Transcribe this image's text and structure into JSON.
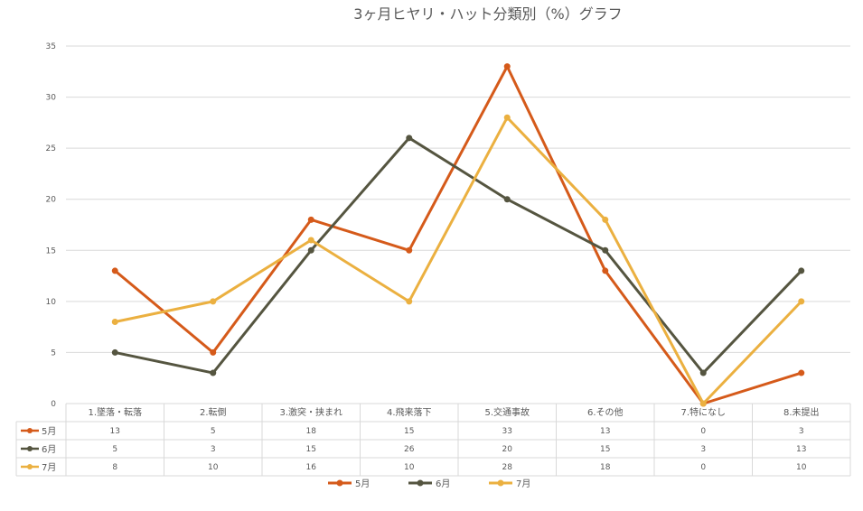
{
  "chart_data": {
    "type": "line",
    "title": "3ヶ月ヒヤリ・ハット分類別（%）グラフ",
    "categories": [
      "1.墜落・転落",
      "2.転倒",
      "3.激突・挟まれ",
      "4.飛来落下",
      "5.交通事故",
      "6.その他",
      "7.特になし",
      "8.未提出"
    ],
    "ylim": [
      0,
      35
    ],
    "yticks": [
      0,
      5,
      10,
      15,
      20,
      25,
      30,
      35
    ],
    "grid": true,
    "legend_placement": "bottom",
    "data_table": true,
    "series": [
      {
        "name": "5月",
        "color": "#D55A1A",
        "values": [
          13,
          5,
          18,
          15,
          33,
          13,
          0,
          3
        ]
      },
      {
        "name": "6月",
        "color": "#555540",
        "values": [
          5,
          3,
          15,
          26,
          20,
          15,
          3,
          13
        ]
      },
      {
        "name": "7月",
        "color": "#EBB040",
        "values": [
          8,
          10,
          16,
          10,
          28,
          18,
          0,
          10
        ]
      }
    ]
  }
}
